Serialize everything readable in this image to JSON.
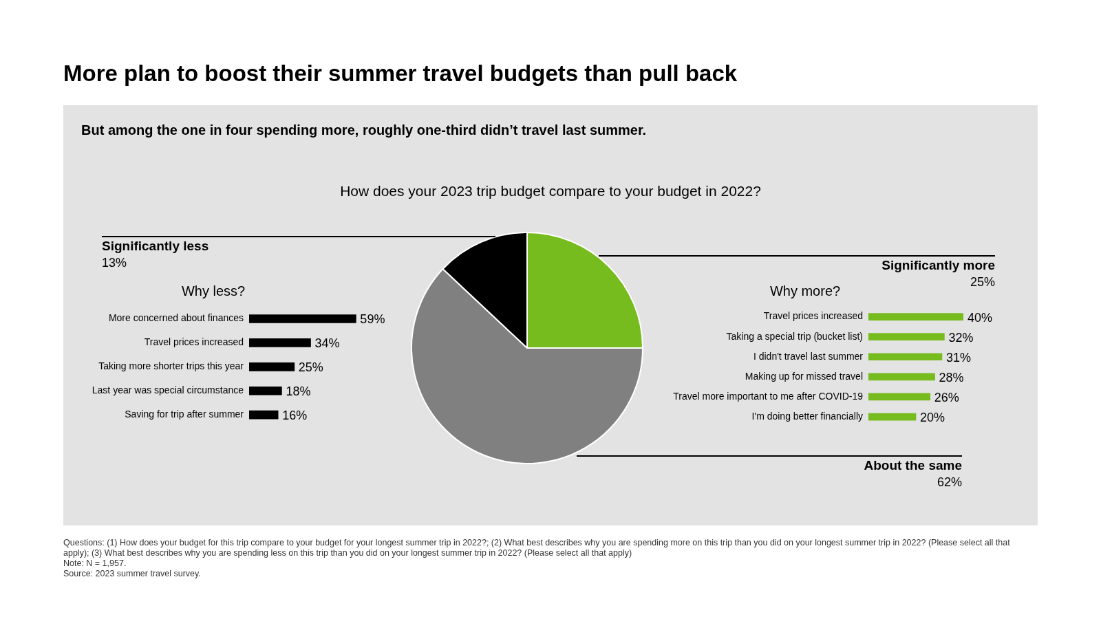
{
  "chart_data": [
    {
      "type": "pie",
      "title": "More plan to boost their summer travel budgets than pull back",
      "subtitle": "But among the one in four spending more, roughly one-third didn’t travel last summer.",
      "categories": [
        "Significantly more",
        "About the same",
        "Significantly less"
      ],
      "values": [
        25,
        62,
        13
      ],
      "value_labels": [
        "25%",
        "62%",
        "13%"
      ],
      "colors": [
        "#77bc1f",
        "#808080",
        "#000000"
      ],
      "annotations": [
        "How does your 2023 trip budget compare to your budget in 2022?",
        "Questions: (1) How does your budget for this trip compare to your budget for your longest summer trip in 2022?; (2) What best describes why you are spending more on this trip than you did on your longest summer trip in 2022? (Please select all that apply); (3) What best describes why you are spending less on this trip than you did on your longest summer trip in 2022? (Please select all that apply)",
        "Note: N = 1,957.",
        "Source: 2023 summer travel survey."
      ]
    },
    {
      "type": "bar",
      "orientation": "horizontal",
      "title": "Why less?",
      "categories": [
        "More concerned about finances",
        "Travel prices increased",
        "Taking more shorter trips this year",
        "Last year was special circumstance",
        "Saving for trip after summer"
      ],
      "values": [
        59,
        34,
        25,
        18,
        16
      ],
      "value_labels": [
        "59%",
        "34%",
        "25%",
        "18%",
        "16%"
      ],
      "color": "#000000"
    },
    {
      "type": "bar",
      "orientation": "horizontal",
      "title": "Why more?",
      "categories": [
        "Travel prices increased",
        "Taking a special trip (bucket list)",
        "I didn't travel last summer",
        "Making up for missed travel",
        "Travel more important to me after COVID-19",
        "I'm doing better financially"
      ],
      "values": [
        40,
        32,
        31,
        28,
        26,
        20
      ],
      "value_labels": [
        "40%",
        "32%",
        "31%",
        "28%",
        "26%",
        "20%"
      ],
      "color": "#77bc1f"
    }
  ]
}
